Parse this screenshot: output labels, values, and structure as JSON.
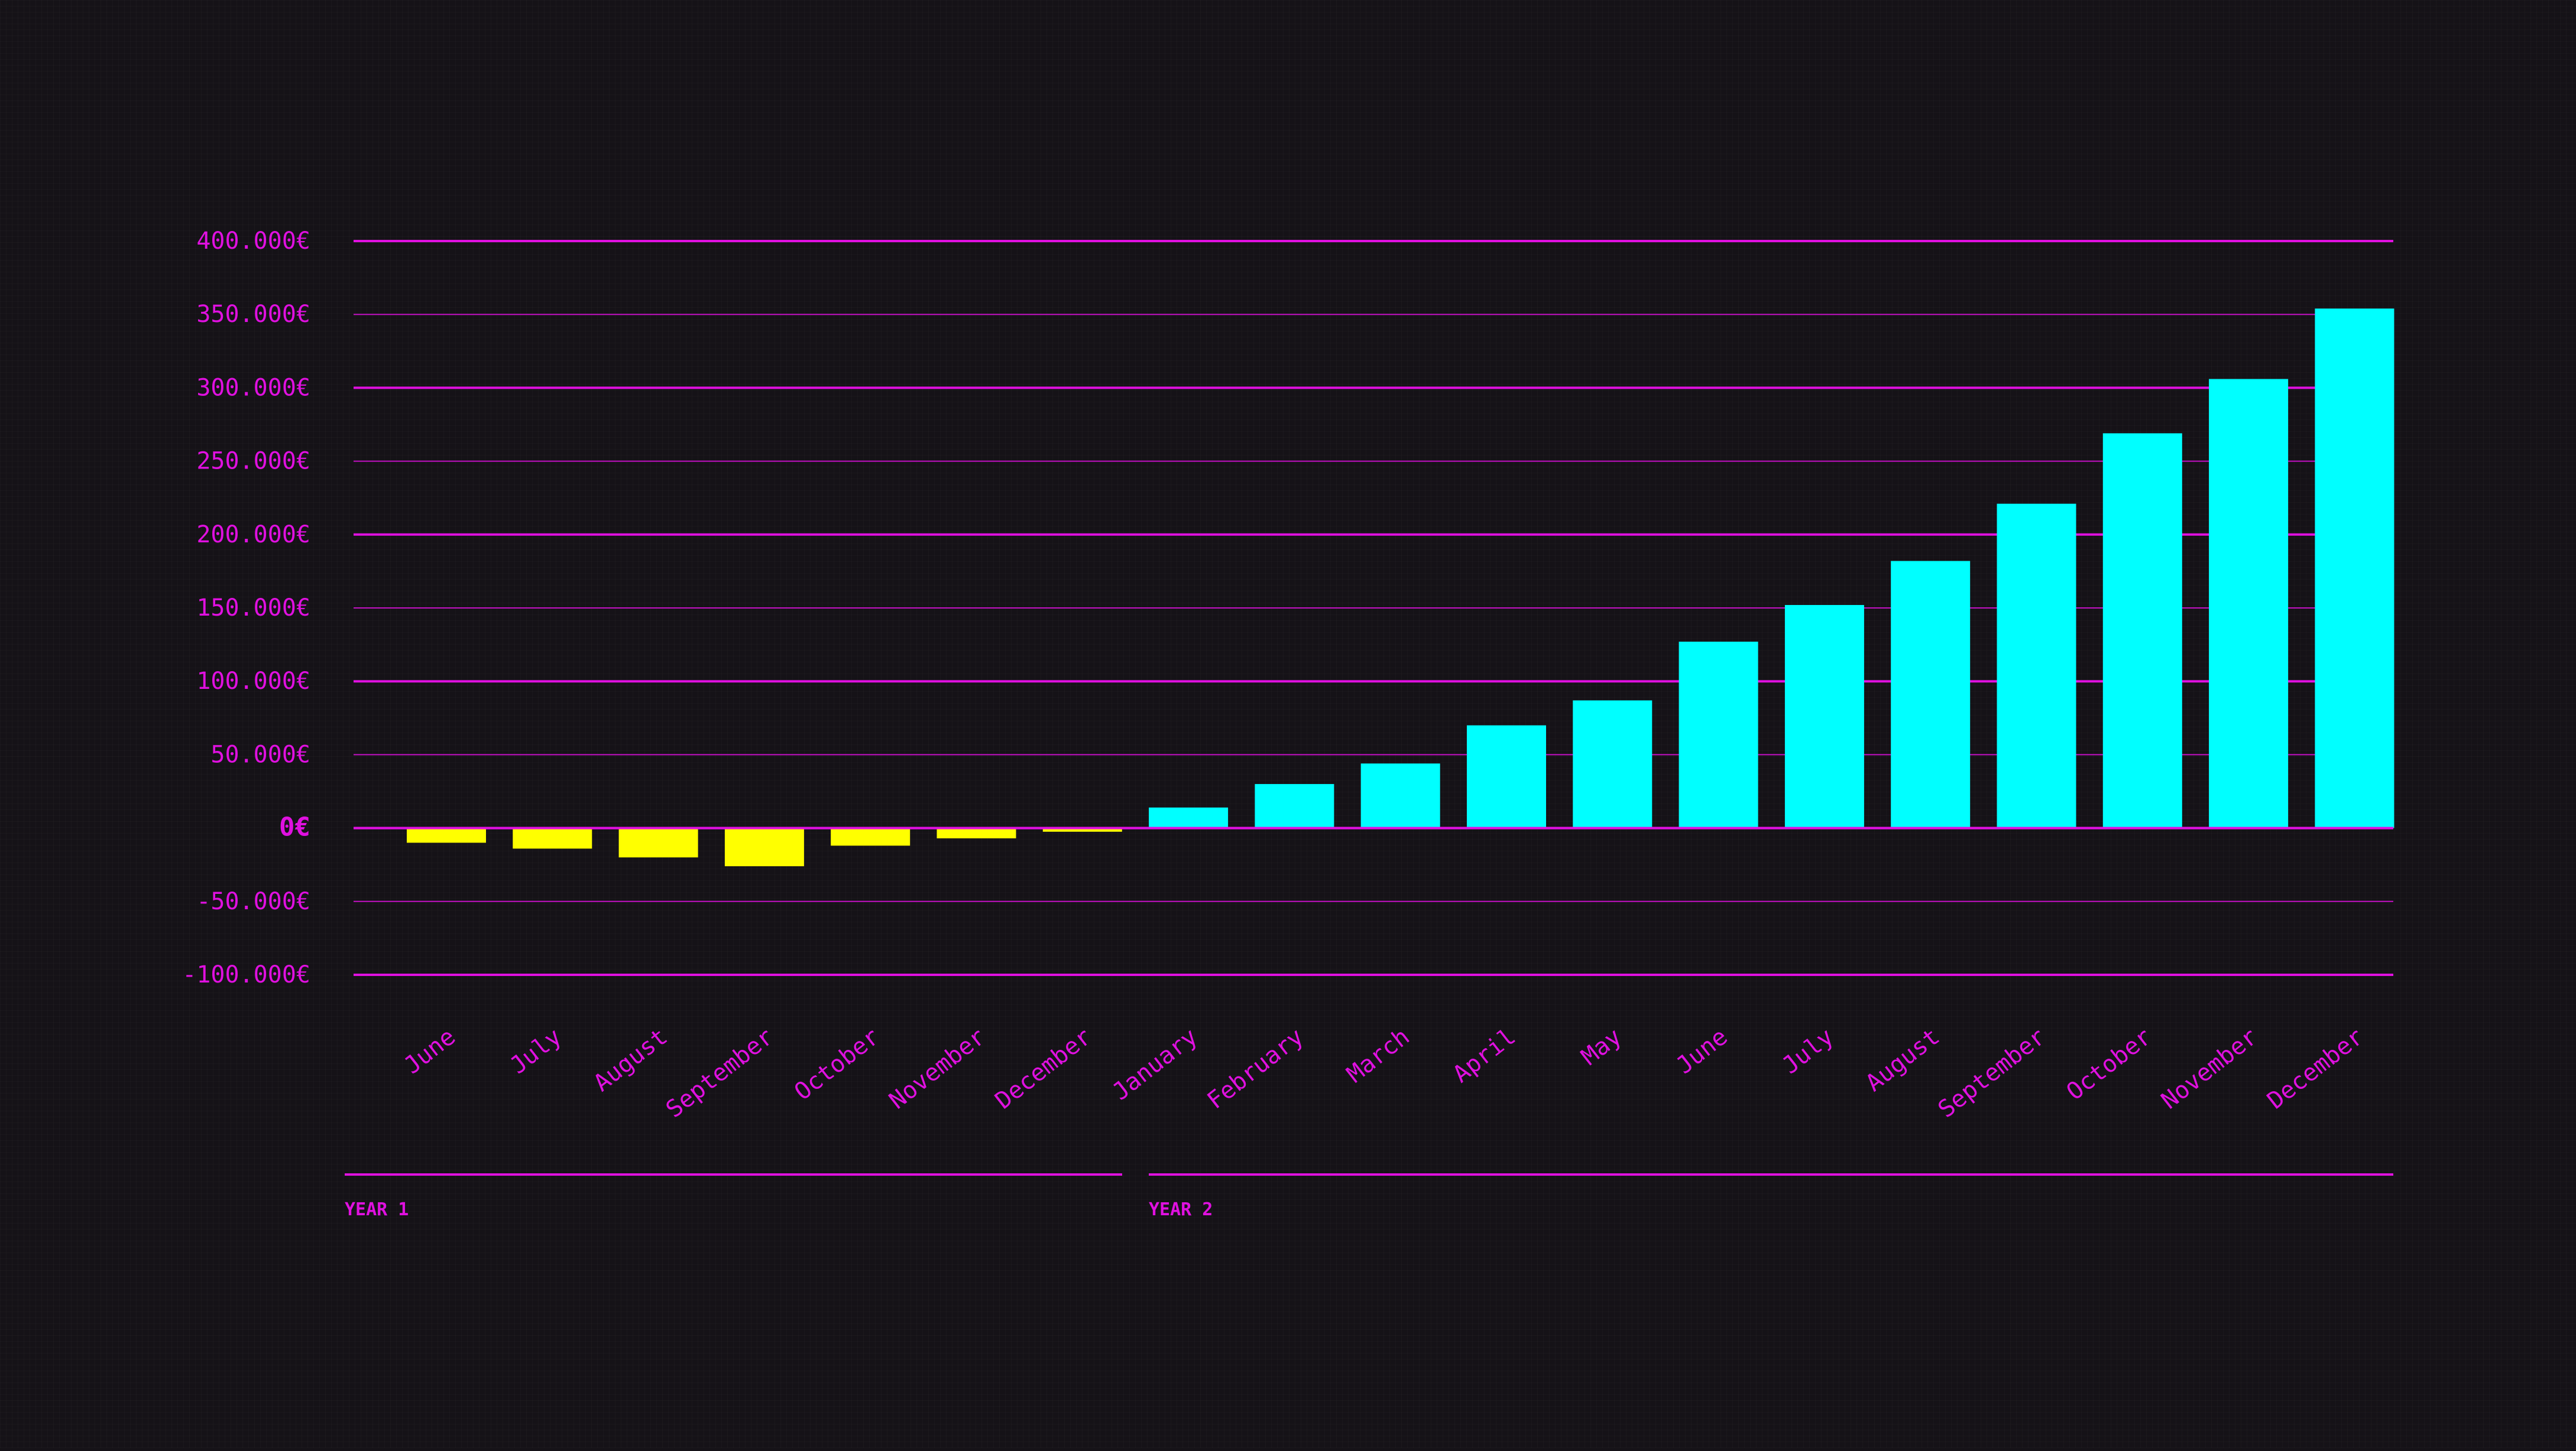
{
  "chart_data": {
    "type": "bar",
    "categories": [
      "June",
      "July",
      "August",
      "September",
      "October",
      "November",
      "December",
      "January",
      "February",
      "March",
      "April",
      "May",
      "June",
      "July",
      "August",
      "September",
      "October",
      "November",
      "December"
    ],
    "values": [
      -10000,
      -14000,
      -20000,
      -26000,
      -12000,
      -7000,
      -2500,
      14000,
      30000,
      44000,
      70000,
      87000,
      127000,
      152000,
      182000,
      221000,
      269000,
      306000,
      354000
    ],
    "groups": [
      {
        "label": "YEAR 1",
        "start": 0,
        "end": 6
      },
      {
        "label": "YEAR 2",
        "start": 7,
        "end": 18
      }
    ],
    "yticks": [
      {
        "value": 400000,
        "label": "400.000€"
      },
      {
        "value": 350000,
        "label": "350.000€"
      },
      {
        "value": 300000,
        "label": "300.000€"
      },
      {
        "value": 250000,
        "label": "250.000€"
      },
      {
        "value": 200000,
        "label": "200.000€"
      },
      {
        "value": 150000,
        "label": "150.000€"
      },
      {
        "value": 100000,
        "label": "100.000€"
      },
      {
        "value": 50000,
        "label": "50.000€"
      },
      {
        "value": 0,
        "label": "0€"
      },
      {
        "value": -50000,
        "label": "-50.000€"
      },
      {
        "value": -100000,
        "label": "-100.000€"
      }
    ],
    "ylim": [
      -100000,
      400000
    ],
    "grid": true,
    "title": "",
    "xlabel": "",
    "ylabel": ""
  },
  "colors": {
    "background": "#151217",
    "accent": "#e010e0",
    "positive": "#00ffff",
    "negative": "#ffff00"
  }
}
